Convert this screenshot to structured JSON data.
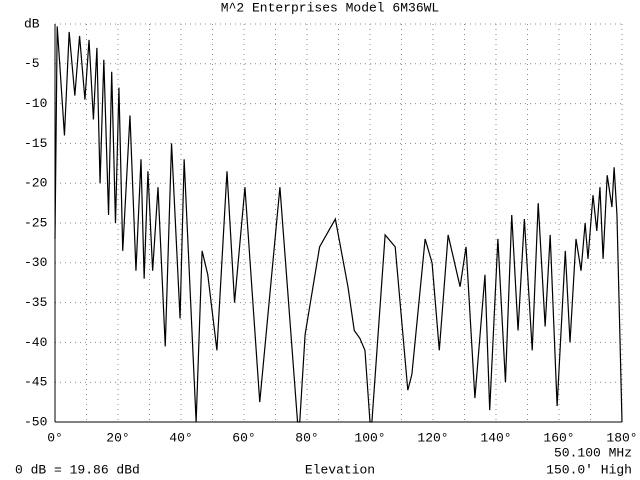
{
  "chart_data": {
    "type": "line",
    "title": "M^2 Enterprises Model 6M36WL",
    "xlabel": "Elevation",
    "notes": [
      "0 dB = 19.86 dBd",
      "50.100 MHz",
      "150.0' High"
    ],
    "color": "#000000",
    "grid": true,
    "xlim": [
      0,
      180
    ],
    "ylim": [
      -50,
      0
    ],
    "xticks": [
      {
        "value": 0,
        "label": "0°"
      },
      {
        "value": 20,
        "label": "20°"
      },
      {
        "value": 40,
        "label": "40°"
      },
      {
        "value": 60,
        "label": "60°"
      },
      {
        "value": 80,
        "label": "80°"
      },
      {
        "value": 100,
        "label": "100°"
      },
      {
        "value": 120,
        "label": "120°"
      },
      {
        "value": 140,
        "label": "140°"
      },
      {
        "value": 160,
        "label": "160°"
      },
      {
        "value": 180,
        "label": "180°"
      }
    ],
    "yticks": [
      {
        "value": 0,
        "label": "dB"
      },
      -5,
      -10,
      -15,
      -20,
      -25,
      -30,
      -35,
      -40,
      -45,
      -50
    ],
    "x": [
      0,
      0.7,
      1.5,
      3,
      4.5,
      6.3,
      7.8,
      9.5,
      10.8,
      12.2,
      13.3,
      14.3,
      15.5,
      17,
      18,
      19.2,
      20.3,
      21.5,
      23.8,
      25.7,
      27.3,
      28.3,
      29.5,
      31,
      32.7,
      35,
      37,
      39.7,
      41,
      44.8,
      46.7,
      48.5,
      51.4,
      54.6,
      57,
      60.3,
      65,
      71.4,
      77,
      77.7,
      79.4,
      84,
      89,
      93,
      95,
      96.8,
      98.4,
      100,
      100.6,
      104.8,
      108,
      112,
      113.3,
      117.5,
      119.7,
      122,
      124.8,
      128.6,
      130.5,
      133.3,
      136.5,
      138,
      140.6,
      143,
      145,
      147,
      149,
      151.5,
      153.4,
      155.6,
      157.2,
      159.4,
      162,
      163.5,
      165.4,
      167,
      168.3,
      169.2,
      170.8,
      172,
      173,
      174,
      175.3,
      176.8,
      177.5,
      178.4,
      180
    ],
    "values": [
      -27,
      -0.3,
      -5,
      -14,
      -1,
      -9,
      -1.5,
      -9.5,
      -2,
      -12,
      -3,
      -20,
      -4.5,
      -24,
      -6,
      -25,
      -8,
      -28.5,
      -11.5,
      -31,
      -17,
      -32,
      -18.5,
      -31,
      -20.5,
      -40.5,
      -15,
      -37,
      -17,
      -50,
      -28.5,
      -31.5,
      -41,
      -18.5,
      -35,
      -20.5,
      -47.5,
      -20.5,
      -50,
      -50,
      -39,
      -28,
      -24.5,
      -33,
      -38.5,
      -39.5,
      -41,
      -50,
      -50,
      -26.5,
      -28,
      -46,
      -44,
      -27,
      -30,
      -41,
      -26.5,
      -33,
      -28,
      -47,
      -31.5,
      -48.5,
      -27,
      -45,
      -24,
      -38.5,
      -24.5,
      -41,
      -22.5,
      -38,
      -26.5,
      -48,
      -28.5,
      -40,
      -27,
      -31,
      -25,
      -29.5,
      -21.5,
      -26,
      -20.5,
      -29.5,
      -19,
      -23,
      -18,
      -24,
      -50
    ]
  }
}
